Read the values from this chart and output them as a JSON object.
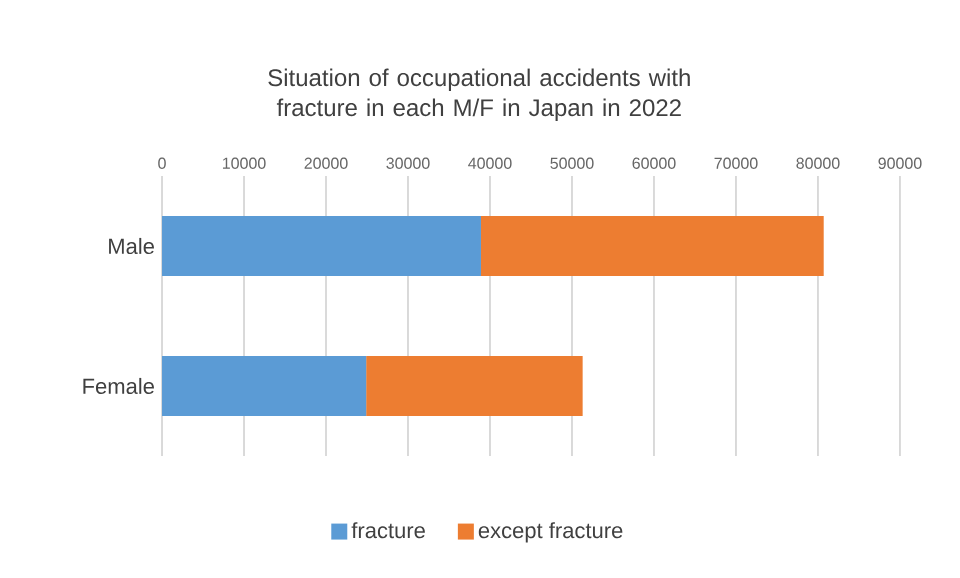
{
  "chart_data": {
    "type": "bar",
    "orientation": "horizontal",
    "stacked": true,
    "title": "Situation of occupational accidents with fracture in each M/F in Japan in 2022",
    "categories": [
      "Male",
      "Female"
    ],
    "series": [
      {
        "name": "fracture",
        "color": "#5b9bd5",
        "values": [
          38900,
          24900
        ]
      },
      {
        "name": "except fracture",
        "color": "#ed7d31",
        "values": [
          41800,
          26400
        ]
      }
    ],
    "xlim": [
      0,
      90000
    ],
    "xticks": [
      0,
      10000,
      20000,
      30000,
      40000,
      50000,
      60000,
      70000,
      80000,
      90000
    ],
    "grid": "x",
    "legend": "bottom"
  }
}
